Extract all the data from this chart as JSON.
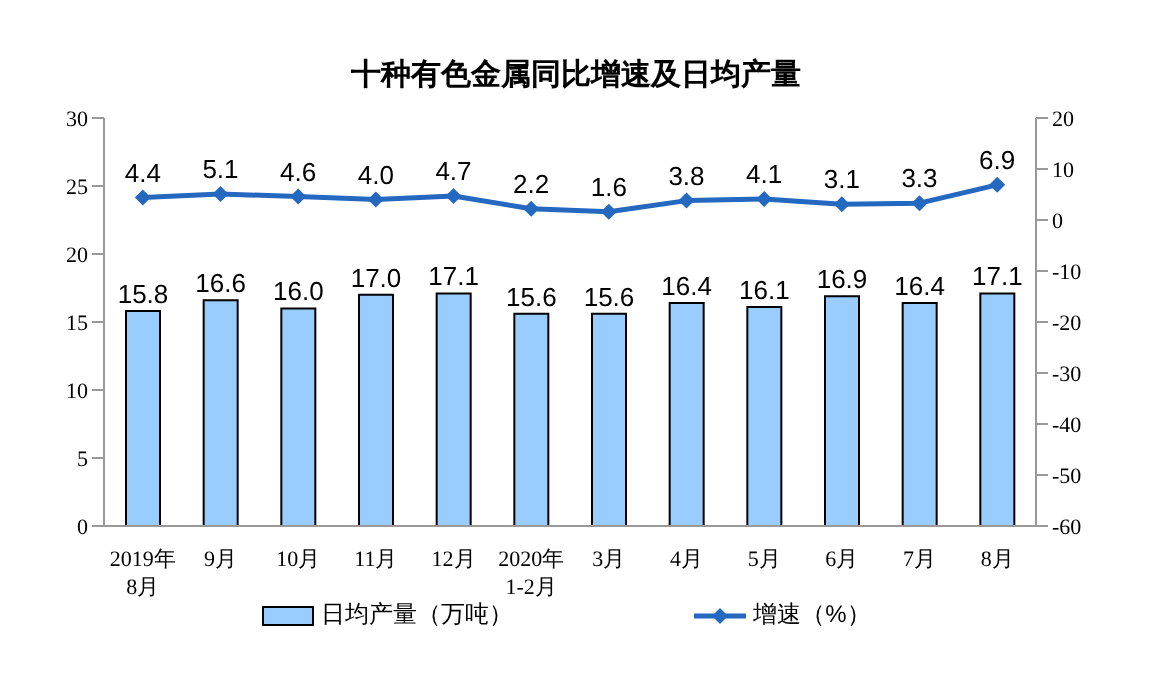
{
  "chart_data": {
    "type": "bar",
    "title": "十种有色金属同比增速及日均产量",
    "categories": [
      "2019年\n8月",
      "9月",
      "10月",
      "11月",
      "12月",
      "2020年\n1-2月",
      "3月",
      "4月",
      "5月",
      "6月",
      "7月",
      "8月"
    ],
    "series": [
      {
        "name": "日均产量（万吨）",
        "color": "#99ccff",
        "values": [
          15.8,
          16.6,
          16.0,
          17.0,
          17.1,
          15.6,
          15.6,
          16.4,
          16.1,
          16.9,
          16.4,
          17.1
        ],
        "value_labels": [
          "15.8",
          "16.6",
          "16.0",
          "17.0",
          "17.1",
          "15.6",
          "15.6",
          "16.4",
          "16.1",
          "16.9",
          "16.4",
          "17.1"
        ]
      },
      {
        "name": "增速（%）",
        "type": "line",
        "axis": "y2",
        "color": "#2468c0",
        "marker": "diamond",
        "values": [
          4.4,
          5.1,
          4.6,
          4.0,
          4.7,
          2.2,
          1.6,
          3.8,
          4.1,
          3.1,
          3.3,
          6.9
        ],
        "value_labels": [
          "4.4",
          "5.1",
          "4.6",
          "4.0",
          "4.7",
          "2.2",
          "1.6",
          "3.8",
          "4.1",
          "3.1",
          "3.3",
          "6.9"
        ]
      }
    ],
    "ylim": [
      0,
      30
    ],
    "yticks": [
      0,
      5,
      10,
      15,
      20,
      25,
      30
    ],
    "y2lim": [
      -60,
      20
    ],
    "y2ticks": [
      -60,
      -50,
      -40,
      -30,
      -20,
      -10,
      0,
      10,
      20
    ],
    "grid": false,
    "legend": "bottom"
  }
}
